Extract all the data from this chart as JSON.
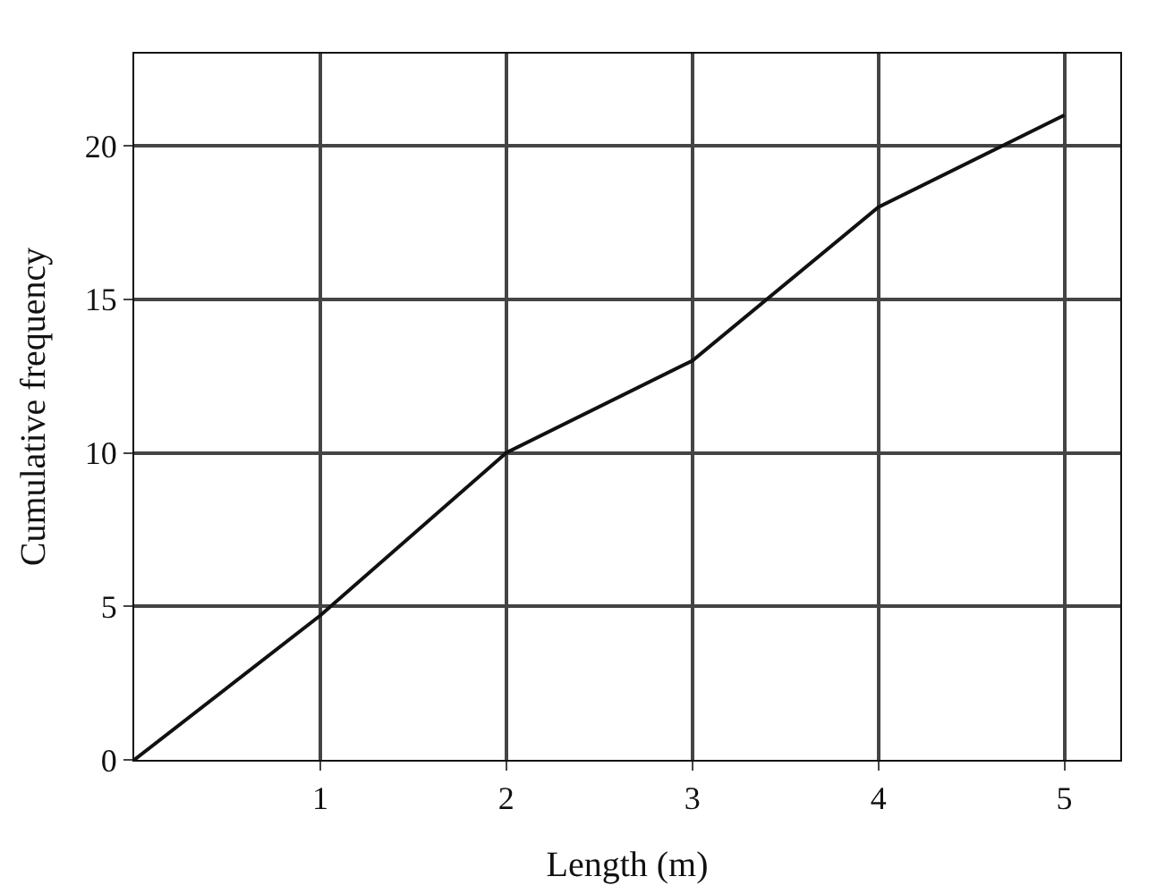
{
  "chart_data": {
    "type": "line",
    "xlabel": "Length (m)",
    "ylabel": "Cumulative frequency",
    "x": [
      0,
      1,
      2,
      3,
      4,
      5
    ],
    "series": [
      {
        "color": "#111111",
        "values": [
          0,
          4.7,
          10,
          13,
          18,
          21
        ]
      }
    ],
    "xlim": [
      0,
      5.3
    ],
    "xticks": [
      1,
      2,
      3,
      4,
      5
    ],
    "ylim": [
      0,
      23
    ],
    "yticks": [
      0,
      5,
      10,
      15,
      20
    ],
    "grid": true,
    "line_style": "solid"
  }
}
